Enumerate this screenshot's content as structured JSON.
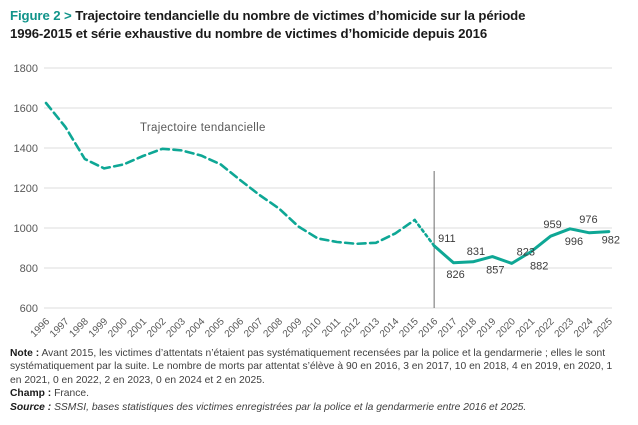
{
  "title": {
    "figure_label": "Figure 2 >",
    "line1": "Trajectoire tendancielle du nombre de victimes d’homicide sur la période",
    "line2": "1996-2015 et série exhaustive du nombre de victimes d’homicide depuis 2016"
  },
  "notes": {
    "note_label": "Note :",
    "note_text": " Avant 2015, les victimes d’attentats n’étaient pas systématiquement recensées par la police et la gendarmerie ; elles le sont systématiquement par la suite. Le nombre de morts par attentat s’élève à 90 en 2016, 3 en 2017, 10 en 2018, 4 en 2019, en 2020, 1 en 2021, 0 en 2022, 2 en 2023, 0 en 2024 et 2 en 2025.",
    "champ_label": "Champ :",
    "champ_text": " France.",
    "source_label": "Source :",
    "source_text": " SSMSI, bases statistiques des victimes enregistrées par la police et la gendarmerie entre 2016 et 2025."
  },
  "chart_data": {
    "type": "line",
    "title": "Trajectoire tendancielle du nombre de victimes d’homicide 1996-2015 et série exhaustive depuis 2016",
    "xlabel": "",
    "ylabel": "",
    "ylim": [
      600,
      1800
    ],
    "yticks": [
      600,
      800,
      1000,
      1200,
      1400,
      1600,
      1800
    ],
    "grid": true,
    "legend_position": "none",
    "accent_color": "#0ea795",
    "marker_line_color": "#6e6e6e",
    "gridline_color": "#dcdcdc",
    "x_labels": [
      "1996",
      "1997",
      "1998",
      "1999",
      "2000",
      "2001",
      "2002",
      "2003",
      "2004",
      "2005",
      "2006",
      "2007",
      "2008",
      "2009",
      "2010",
      "2011",
      "2012",
      "2013",
      "2014",
      "2015",
      "2016",
      "2017",
      "2018",
      "2019",
      "2020",
      "2021",
      "2022",
      "2023",
      "2024",
      "2025"
    ],
    "annotation": {
      "text": "Trajectoire tendancielle"
    },
    "vline": {
      "year": 2016,
      "top_value": 1285
    },
    "series": [
      {
        "name": "Trajectoire tendancielle (estimée)",
        "style": "dashed",
        "x": [
          1996,
          1997,
          1998,
          1999,
          2000,
          2001,
          2002,
          2003,
          2004,
          2005,
          2006,
          2007,
          2008,
          2009,
          2010,
          2011,
          2012,
          2013,
          2014,
          2015
        ],
        "values": [
          1625,
          1505,
          1345,
          1298,
          1318,
          1360,
          1396,
          1388,
          1362,
          1318,
          1240,
          1165,
          1098,
          1008,
          948,
          930,
          921,
          926,
          973,
          1040
        ]
      },
      {
        "name": "Série exhaustive depuis 2016",
        "style": "solid",
        "x": [
          2016,
          2017,
          2018,
          2019,
          2020,
          2021,
          2022,
          2023,
          2024,
          2025
        ],
        "values": [
          911,
          826,
          831,
          857,
          823,
          882,
          959,
          996,
          976,
          982
        ],
        "labels": [
          "911",
          "826",
          "831",
          "857",
          "823",
          "882",
          "959",
          "996",
          "976",
          "982"
        ],
        "label_offsets": [
          [
            4,
            -4,
            "start"
          ],
          [
            2,
            15,
            "middle"
          ],
          [
            3,
            -7,
            "middle"
          ],
          [
            3,
            17,
            "middle"
          ],
          [
            14,
            -8,
            "middle"
          ],
          [
            8,
            18,
            "middle"
          ],
          [
            2,
            -8,
            "middle"
          ],
          [
            4,
            16,
            "middle"
          ],
          [
            -1,
            -10,
            "middle"
          ],
          [
            2,
            12,
            "middle"
          ]
        ]
      }
    ]
  }
}
